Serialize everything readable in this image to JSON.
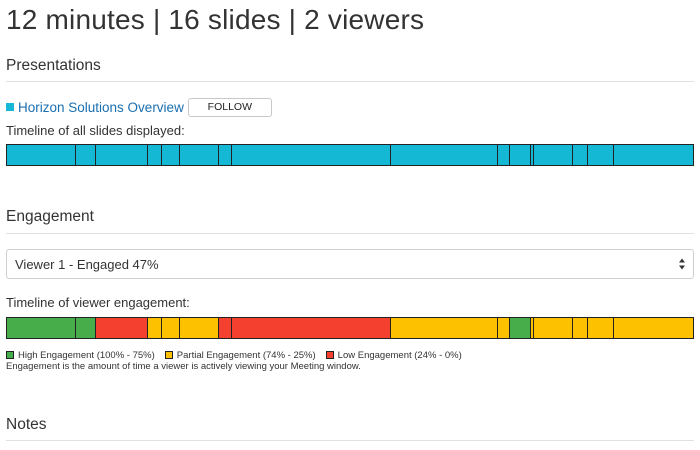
{
  "header": {
    "title": "12 minutes | 16 slides | 2 viewers"
  },
  "presentations": {
    "heading": "Presentations",
    "item": {
      "name": "Horizon Solutions Overview",
      "follow_label": "FOLLOW",
      "icon": "square-icon",
      "icon_color": "#15b8d4"
    },
    "slides_timeline_label": "Timeline of all slides displayed:",
    "slides_timeline": [
      {
        "duration": 69
      },
      {
        "duration": 20
      },
      {
        "duration": 53
      },
      {
        "duration": 14
      },
      {
        "duration": 18
      },
      {
        "duration": 39
      },
      {
        "duration": 13
      },
      {
        "duration": 160
      },
      {
        "duration": 107
      },
      {
        "duration": 12
      },
      {
        "duration": 21
      },
      {
        "duration": 3
      },
      {
        "duration": 40
      },
      {
        "duration": 15
      },
      {
        "duration": 26
      },
      {
        "duration": 79
      }
    ],
    "slide_color": "#15b8d4"
  },
  "engagement": {
    "heading": "Engagement",
    "viewer_select": {
      "selected": "Viewer 1 - Engaged 47%"
    },
    "engagement_timeline_label": "Timeline of viewer engagement:",
    "engagement_timeline": [
      {
        "duration": 69,
        "level": "high"
      },
      {
        "duration": 20,
        "level": "high"
      },
      {
        "duration": 53,
        "level": "low"
      },
      {
        "duration": 14,
        "level": "partial"
      },
      {
        "duration": 18,
        "level": "partial"
      },
      {
        "duration": 39,
        "level": "partial"
      },
      {
        "duration": 13,
        "level": "low"
      },
      {
        "duration": 160,
        "level": "low"
      },
      {
        "duration": 107,
        "level": "partial"
      },
      {
        "duration": 12,
        "level": "partial"
      },
      {
        "duration": 21,
        "level": "high"
      },
      {
        "duration": 3,
        "level": "partial"
      },
      {
        "duration": 40,
        "level": "partial"
      },
      {
        "duration": 15,
        "level": "partial"
      },
      {
        "duration": 26,
        "level": "partial"
      },
      {
        "duration": 79,
        "level": "partial"
      }
    ],
    "level_colors": {
      "high": "#46ad4a",
      "partial": "#fdc100",
      "low": "#f4402f"
    },
    "legend": [
      {
        "level": "high",
        "label": "High Engagement (100% - 75%)"
      },
      {
        "level": "partial",
        "label": "Partial Engagement (74% - 25%)"
      },
      {
        "level": "low",
        "label": "Low Engagement (24% - 0%)"
      }
    ],
    "note": "Engagement is the amount of time a viewer is actively viewing your Meeting window."
  },
  "notes": {
    "heading": "Notes"
  }
}
